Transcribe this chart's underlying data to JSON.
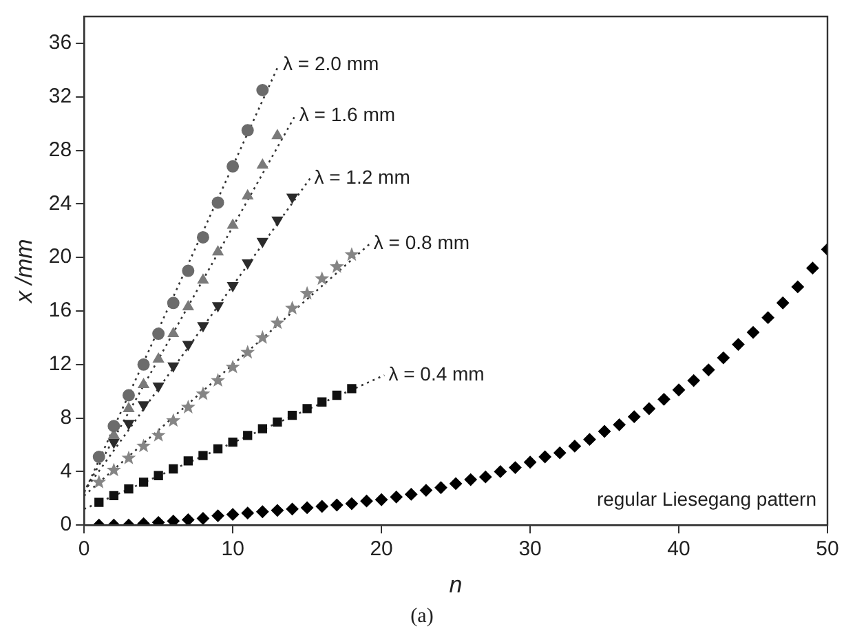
{
  "chart_data": {
    "type": "scatter",
    "xlabel": "n",
    "ylabel": "x /mm",
    "xlim": [
      0,
      50
    ],
    "ylim": [
      0,
      38
    ],
    "xticks": [
      0,
      10,
      20,
      30,
      40,
      50
    ],
    "yticks": [
      0,
      4,
      8,
      12,
      16,
      20,
      24,
      28,
      32,
      36
    ],
    "grid": false,
    "legend": false,
    "series": [
      {
        "color": "#6b6b6b",
        "marker": "circle",
        "x": [
          1,
          2,
          3,
          4,
          5,
          6,
          7,
          8,
          9,
          10,
          11,
          12
        ],
        "values": [
          5.1,
          7.4,
          9.7,
          12.0,
          14.3,
          16.6,
          19.0,
          21.5,
          24.1,
          26.8,
          29.5,
          32.5
        ]
      },
      {
        "color": "#7a7a7a",
        "marker": "triangle",
        "x": [
          2,
          3,
          4,
          5,
          6,
          7,
          8,
          9,
          10,
          11,
          12,
          13
        ],
        "values": [
          6.7,
          8.7,
          10.5,
          12.4,
          14.3,
          16.3,
          18.3,
          20.4,
          22.4,
          24.6,
          26.9,
          29.1
        ]
      },
      {
        "color": "#2b2b2b",
        "marker": "triangle-down",
        "x": [
          2,
          3,
          4,
          5,
          6,
          7,
          8,
          9,
          10,
          11,
          12,
          13,
          14
        ],
        "values": [
          6.2,
          7.6,
          9.0,
          10.4,
          11.9,
          13.5,
          14.9,
          16.4,
          17.9,
          19.6,
          21.2,
          22.8,
          24.5
        ]
      },
      {
        "color": "#858585",
        "marker": "star",
        "x": [
          1,
          2,
          3,
          4,
          5,
          6,
          7,
          8,
          9,
          10,
          11,
          12,
          13,
          14,
          15,
          16,
          17,
          18
        ],
        "values": [
          3.2,
          4.1,
          5.0,
          5.9,
          6.7,
          7.8,
          8.8,
          9.8,
          10.8,
          11.8,
          12.9,
          14.0,
          15.1,
          16.2,
          17.3,
          18.4,
          19.3,
          20.2
        ]
      },
      {
        "color": "#111111",
        "marker": "square",
        "x": [
          1,
          2,
          3,
          4,
          5,
          6,
          7,
          8,
          9,
          10,
          11,
          12,
          13,
          14,
          15,
          16,
          17,
          18
        ],
        "values": [
          1.7,
          2.2,
          2.7,
          3.2,
          3.7,
          4.2,
          4.8,
          5.2,
          5.7,
          6.2,
          6.7,
          7.2,
          7.7,
          8.2,
          8.7,
          9.2,
          9.7,
          10.2
        ]
      },
      {
        "color": "#000000",
        "marker": "diamond",
        "x": [
          1,
          2,
          3,
          4,
          5,
          6,
          7,
          8,
          9,
          10,
          11,
          12,
          13,
          14,
          15,
          16,
          17,
          18,
          19,
          20,
          21,
          22,
          23,
          24,
          25,
          26,
          27,
          28,
          29,
          30,
          31,
          32,
          33,
          34,
          35,
          36,
          37,
          38,
          39,
          40,
          41,
          42,
          43,
          44,
          45,
          46,
          47,
          48,
          49,
          50
        ],
        "values": [
          0.0,
          0.0,
          0.0,
          0.1,
          0.2,
          0.3,
          0.4,
          0.5,
          0.7,
          0.8,
          0.9,
          1.0,
          1.1,
          1.2,
          1.3,
          1.4,
          1.5,
          1.6,
          1.8,
          1.9,
          2.1,
          2.3,
          2.6,
          2.8,
          3.1,
          3.4,
          3.6,
          4.0,
          4.3,
          4.7,
          5.1,
          5.4,
          5.9,
          6.4,
          7.0,
          7.5,
          8.1,
          8.7,
          9.4,
          10.1,
          10.8,
          11.6,
          12.5,
          13.5,
          14.4,
          15.5,
          16.6,
          17.8,
          19.2,
          20.6
        ]
      },
      {
        "type": "line",
        "color": "#333333",
        "marker": "none",
        "line_style": "dotted",
        "x": [
          0,
          13.1
        ],
        "values": [
          2.4,
          34.4
        ]
      },
      {
        "type": "line",
        "color": "#333333",
        "marker": "none",
        "line_style": "dotted",
        "x": [
          0,
          14.2
        ],
        "values": [
          2.5,
          30.6
        ]
      },
      {
        "type": "line",
        "color": "#333333",
        "marker": "none",
        "line_style": "dotted",
        "x": [
          0,
          15.2
        ],
        "values": [
          2.5,
          25.9
        ]
      },
      {
        "type": "line",
        "color": "#333333",
        "marker": "none",
        "line_style": "dotted",
        "x": [
          0,
          19.2
        ],
        "values": [
          2.2,
          21.0
        ]
      },
      {
        "type": "line",
        "color": "#333333",
        "marker": "none",
        "line_style": "dotted",
        "x": [
          0,
          20.2
        ],
        "values": [
          1.2,
          11.2
        ]
      }
    ],
    "annotations": [
      {
        "text": "λ = 2.0 mm",
        "x": 13.1,
        "y": 34.4
      },
      {
        "text": "λ = 1.6 mm",
        "x": 14.2,
        "y": 30.6
      },
      {
        "text": "λ = 1.2 mm",
        "x": 15.2,
        "y": 25.9
      },
      {
        "text": "λ = 0.8 mm",
        "x": 19.2,
        "y": 21.0
      },
      {
        "text": "λ = 0.4 mm",
        "x": 20.2,
        "y": 11.2
      },
      "regular Liesegang pattern",
      "(a)"
    ]
  }
}
